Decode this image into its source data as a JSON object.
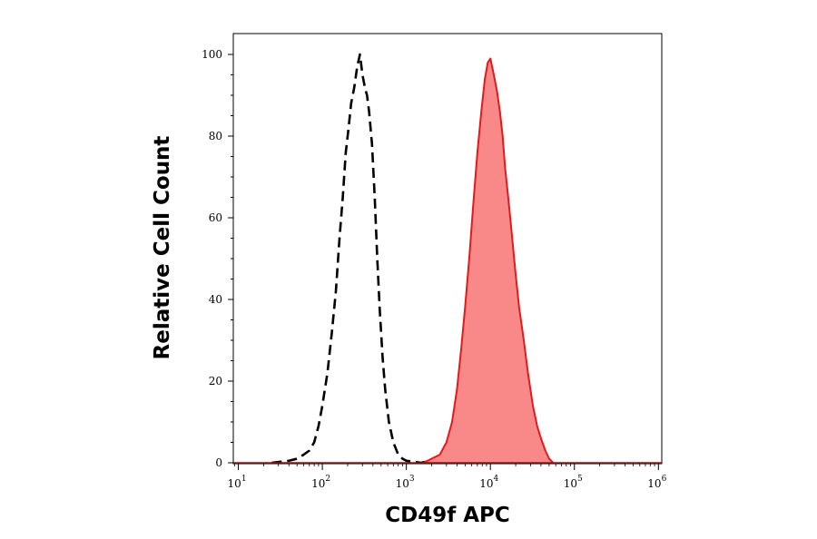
{
  "chart_data": {
    "type": "area",
    "xlabel": "CD49f APC",
    "ylabel": "Relative Cell Count",
    "x_scale": "log",
    "xlim": [
      10,
      1000000
    ],
    "ylim": [
      0,
      100
    ],
    "x_ticks": [
      {
        "base": "10",
        "exp": "1"
      },
      {
        "base": "10",
        "exp": "2"
      },
      {
        "base": "10",
        "exp": "3"
      },
      {
        "base": "10",
        "exp": "4"
      },
      {
        "base": "10",
        "exp": "5"
      },
      {
        "base": "10",
        "exp": "6"
      }
    ],
    "y_ticks": [
      "0",
      "20",
      "40",
      "60",
      "80",
      "100"
    ],
    "grid": false,
    "series": [
      {
        "style": "dashed",
        "color": "#000000",
        "fill": "none",
        "points": [
          [
            25,
            0
          ],
          [
            40,
            0.5
          ],
          [
            50,
            1
          ],
          [
            60,
            2
          ],
          [
            70,
            3
          ],
          [
            80,
            5
          ],
          [
            90,
            9
          ],
          [
            100,
            14
          ],
          [
            115,
            22
          ],
          [
            130,
            32
          ],
          [
            145,
            42
          ],
          [
            160,
            55
          ],
          [
            175,
            65
          ],
          [
            190,
            76
          ],
          [
            205,
            82
          ],
          [
            220,
            88
          ],
          [
            240,
            92
          ],
          [
            260,
            97
          ],
          [
            280,
            100
          ],
          [
            300,
            95
          ],
          [
            320,
            92
          ],
          [
            340,
            90
          ],
          [
            360,
            86
          ],
          [
            390,
            78
          ],
          [
            420,
            65
          ],
          [
            450,
            50
          ],
          [
            480,
            38
          ],
          [
            520,
            26
          ],
          [
            560,
            18
          ],
          [
            620,
            10
          ],
          [
            700,
            5
          ],
          [
            800,
            2
          ],
          [
            900,
            1
          ],
          [
            1000,
            0.5
          ],
          [
            1500,
            0
          ],
          [
            3000,
            1.5
          ],
          [
            5000,
            1.5
          ],
          [
            8000,
            1
          ],
          [
            12000,
            0.5
          ],
          [
            20000,
            0
          ]
        ]
      },
      {
        "style": "solid",
        "color": "#e31a1c",
        "fill": "#f98989",
        "points": [
          [
            1600,
            0
          ],
          [
            2000,
            1
          ],
          [
            2500,
            2
          ],
          [
            3000,
            5
          ],
          [
            3500,
            10
          ],
          [
            4000,
            18
          ],
          [
            4500,
            28
          ],
          [
            5000,
            38
          ],
          [
            5600,
            50
          ],
          [
            6300,
            64
          ],
          [
            7000,
            76
          ],
          [
            7800,
            86
          ],
          [
            8600,
            94
          ],
          [
            9300,
            98
          ],
          [
            10000,
            99
          ],
          [
            11000,
            95
          ],
          [
            12000,
            91
          ],
          [
            13000,
            86
          ],
          [
            14000,
            80
          ],
          [
            15000,
            72
          ],
          [
            16500,
            64
          ],
          [
            18000,
            56
          ],
          [
            20000,
            46
          ],
          [
            22000,
            38
          ],
          [
            25000,
            30
          ],
          [
            28000,
            22
          ],
          [
            32000,
            14
          ],
          [
            36000,
            9
          ],
          [
            40000,
            6
          ],
          [
            45000,
            3
          ],
          [
            50000,
            1
          ],
          [
            56000,
            0
          ]
        ]
      }
    ]
  }
}
